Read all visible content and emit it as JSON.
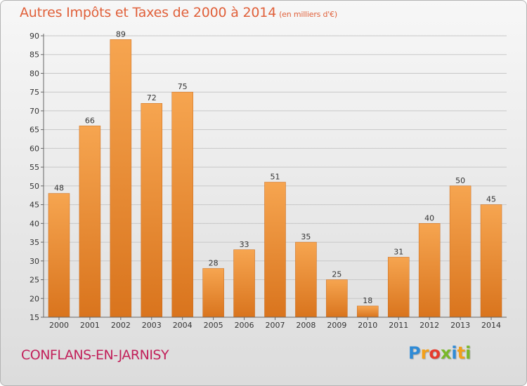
{
  "title_main": "Autres Impôts et Taxes de 2000 à 2014",
  "title_unit": "(en milliers d'€)",
  "commune": "CONFLANS-EN-JARNISY",
  "logo_letters": [
    "P",
    "r",
    "o",
    "x",
    "i",
    "t",
    "i"
  ],
  "colors": {
    "bar_light": "#f6a550",
    "bar_dark": "#d9741d",
    "title": "#e0603a",
    "commune": "#c2205a"
  },
  "chart_data": {
    "type": "bar",
    "title": "Autres Impôts et Taxes de 2000 à 2014",
    "subtitle": "(en milliers d'€)",
    "xlabel": "",
    "ylabel": "",
    "categories": [
      "2000",
      "2001",
      "2002",
      "2003",
      "2004",
      "2005",
      "2006",
      "2007",
      "2008",
      "2009",
      "2010",
      "2011",
      "2012",
      "2013",
      "2014"
    ],
    "values": [
      48,
      66,
      89,
      72,
      75,
      28,
      33,
      51,
      35,
      25,
      18,
      31,
      40,
      50,
      45
    ],
    "ylim": [
      15,
      90
    ],
    "yticks": [
      15,
      20,
      25,
      30,
      35,
      40,
      45,
      50,
      55,
      60,
      65,
      70,
      75,
      80,
      85,
      90
    ],
    "grid": true
  }
}
